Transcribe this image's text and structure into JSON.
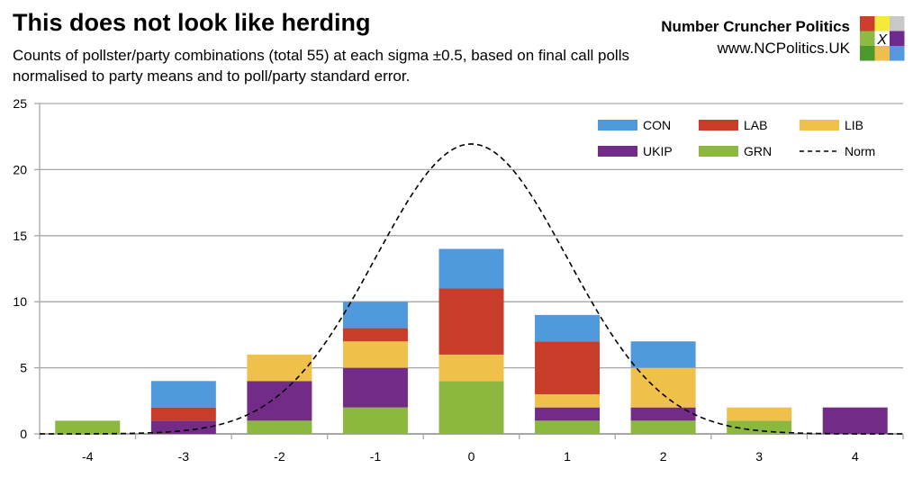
{
  "title": "This does not look like herding",
  "subtitle": "Counts of pollster/party combinations (total 55) at each sigma ±0.5, based on final call polls normalised to party means and to poll/party standard error.",
  "brand": {
    "name": "Number Cruncher Politics",
    "url": "www.NCPolitics.UK",
    "logo_mark": "X",
    "logo_colors": [
      "#d13d2b",
      "#f5ea3c",
      "#c8c8c8",
      "#8dba45",
      "#ffffff",
      "#6e2a8c",
      "#4b9a2e",
      "#efbe4c",
      "#5399dd"
    ]
  },
  "chart_data": {
    "type": "bar",
    "stacked": true,
    "categories": [
      "-4",
      "-3",
      "-2",
      "-1",
      "0",
      "1",
      "2",
      "3",
      "4"
    ],
    "ylim": [
      0,
      25
    ],
    "yticks": [
      0,
      5,
      10,
      15,
      20,
      25
    ],
    "grid": true,
    "legend": "top-right",
    "series": [
      {
        "name": "GRN",
        "color": "#8db840",
        "values": [
          1,
          0,
          1,
          2,
          4,
          1,
          1,
          1,
          0
        ]
      },
      {
        "name": "UKIP",
        "color": "#722c87",
        "values": [
          0,
          1,
          3,
          3,
          0,
          1,
          1,
          0,
          2
        ]
      },
      {
        "name": "LIB",
        "color": "#efc04a",
        "values": [
          0,
          0,
          2,
          2,
          2,
          1,
          3,
          1,
          0
        ]
      },
      {
        "name": "LAB",
        "color": "#c83c2a",
        "values": [
          0,
          1,
          0,
          1,
          5,
          4,
          0,
          0,
          0
        ]
      },
      {
        "name": "CON",
        "color": "#5199dd",
        "values": [
          0,
          2,
          0,
          2,
          3,
          2,
          2,
          0,
          0
        ]
      }
    ],
    "legend_order": [
      "CON",
      "LAB",
      "LIB",
      "UKIP",
      "GRN",
      "Norm"
    ],
    "norm_curve": {
      "name": "Norm",
      "type": "normal",
      "mean": 0,
      "sd": 1,
      "total": 55,
      "style": "dashed",
      "color": "#000000"
    }
  }
}
